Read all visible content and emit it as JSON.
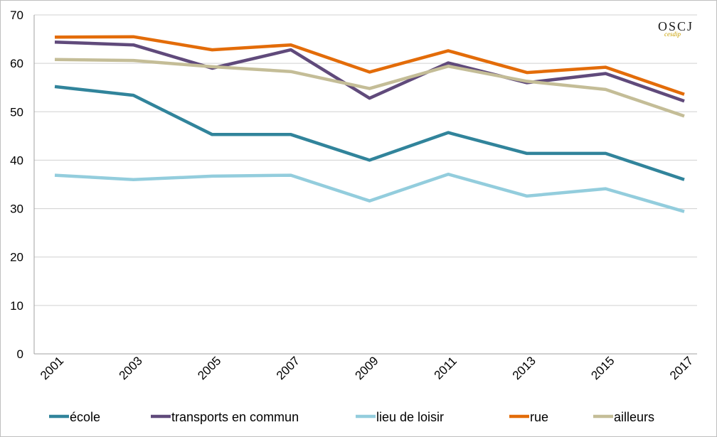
{
  "logo": {
    "main": "OSCJ",
    "sub": "cesdip"
  },
  "chart_data": {
    "type": "line",
    "title": "",
    "xlabel": "",
    "ylabel": "",
    "ylim": [
      0,
      70
    ],
    "yticks": [
      0,
      10,
      20,
      30,
      40,
      50,
      60,
      70
    ],
    "grid": true,
    "legend_position": "bottom",
    "categories": [
      "2001",
      "2003",
      "2005",
      "2007",
      "2009",
      "2011",
      "2013",
      "2015",
      "2017"
    ],
    "series": [
      {
        "name": "école",
        "color": "#31849b",
        "values": [
          55.2,
          53.4,
          45.3,
          45.3,
          40.0,
          45.7,
          41.4,
          41.4,
          36.0
        ]
      },
      {
        "name": "transports en commun",
        "color": "#604a7b",
        "values": [
          64.4,
          63.8,
          59.0,
          62.8,
          52.8,
          60.1,
          56.0,
          57.9,
          52.2
        ]
      },
      {
        "name": "lieu de loisir",
        "color": "#93cddd",
        "values": [
          36.9,
          36.0,
          36.7,
          36.9,
          31.6,
          37.1,
          32.6,
          34.1,
          29.4
        ]
      },
      {
        "name": "rue",
        "color": "#e36c09",
        "values": [
          65.4,
          65.5,
          62.8,
          63.8,
          58.2,
          62.6,
          58.1,
          59.2,
          53.6
        ]
      },
      {
        "name": "ailleurs",
        "color": "#c4bd97",
        "values": [
          60.8,
          60.6,
          59.3,
          58.3,
          54.8,
          59.4,
          56.3,
          54.6,
          49.1
        ]
      }
    ]
  }
}
